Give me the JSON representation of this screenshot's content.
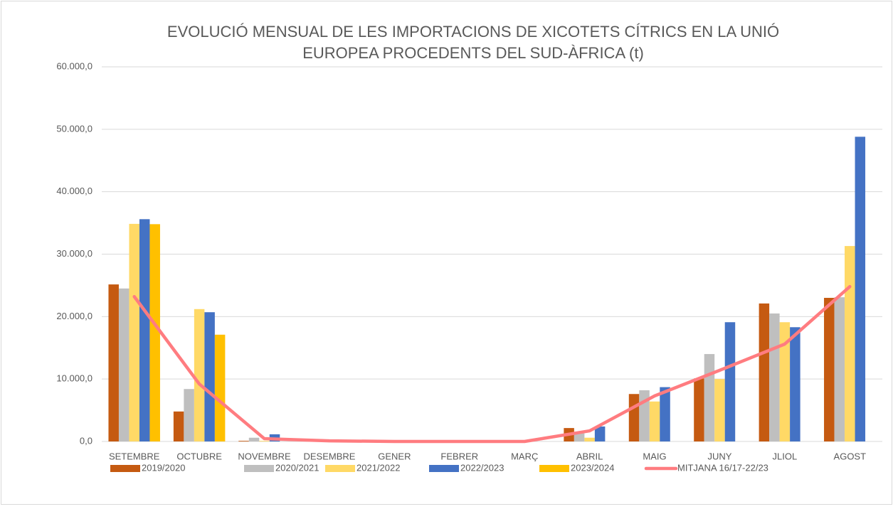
{
  "chart_data": {
    "type": "bar",
    "title": [
      "EVOLUCIÓ MENSUAL DE LES IMPORTACIONS DE XICOTETS CÍTRICS EN LA UNIÓ",
      "EUROPEA PROCEDENTS DEL SUD-ÀFRICA (t)"
    ],
    "categories": [
      "SETEMBRE",
      "OCTUBRE",
      "NOVEMBRE",
      "DESEMBRE",
      "GENER",
      "FEBRER",
      "MARÇ",
      "ABRIL",
      "MAIG",
      "JUNY",
      "JLIOL",
      "AGOST"
    ],
    "series": [
      {
        "name": "2019/2020",
        "color": "#c55a11",
        "values": [
          25150,
          4800,
          100,
          0,
          0,
          0,
          0,
          2150,
          7600,
          10100,
          22100,
          23000
        ]
      },
      {
        "name": "2020/2021",
        "color": "#bfbfbf",
        "values": [
          24500,
          8400,
          600,
          0,
          0,
          0,
          0,
          1300,
          8200,
          14000,
          20500,
          23100
        ]
      },
      {
        "name": "2021/2022",
        "color": "#ffd966",
        "values": [
          34850,
          21200,
          100,
          0,
          0,
          0,
          0,
          600,
          6400,
          10000,
          19100,
          31300
        ]
      },
      {
        "name": "2022/2023",
        "color": "#4472c4",
        "values": [
          35600,
          20700,
          1150,
          0,
          0,
          0,
          0,
          2400,
          8700,
          19100,
          18300,
          48800
        ]
      },
      {
        "name": "2023/2024",
        "color": "#ffc000",
        "values": [
          34800,
          17100,
          null,
          null,
          null,
          null,
          null,
          null,
          null,
          null,
          null,
          null
        ]
      },
      {
        "name": "MITJANA 16/17-22/23",
        "color": "#ff7c80",
        "type": "line",
        "values": [
          23200,
          9200,
          450,
          100,
          0,
          0,
          0,
          1700,
          7300,
          11400,
          15600,
          24800
        ]
      }
    ],
    "ylim": [
      0,
      60000
    ],
    "yticks": [
      {
        "value": 0,
        "label": "0,0"
      },
      {
        "value": 10000,
        "label": "10.000,0"
      },
      {
        "value": 20000,
        "label": "20.000,0"
      },
      {
        "value": 30000,
        "label": "30.000,0"
      },
      {
        "value": 40000,
        "label": "40.000,0"
      },
      {
        "value": 50000,
        "label": "50.000,0"
      },
      {
        "value": 60000,
        "label": "60.000,0"
      }
    ],
    "grid": true,
    "legend": "bottom"
  }
}
